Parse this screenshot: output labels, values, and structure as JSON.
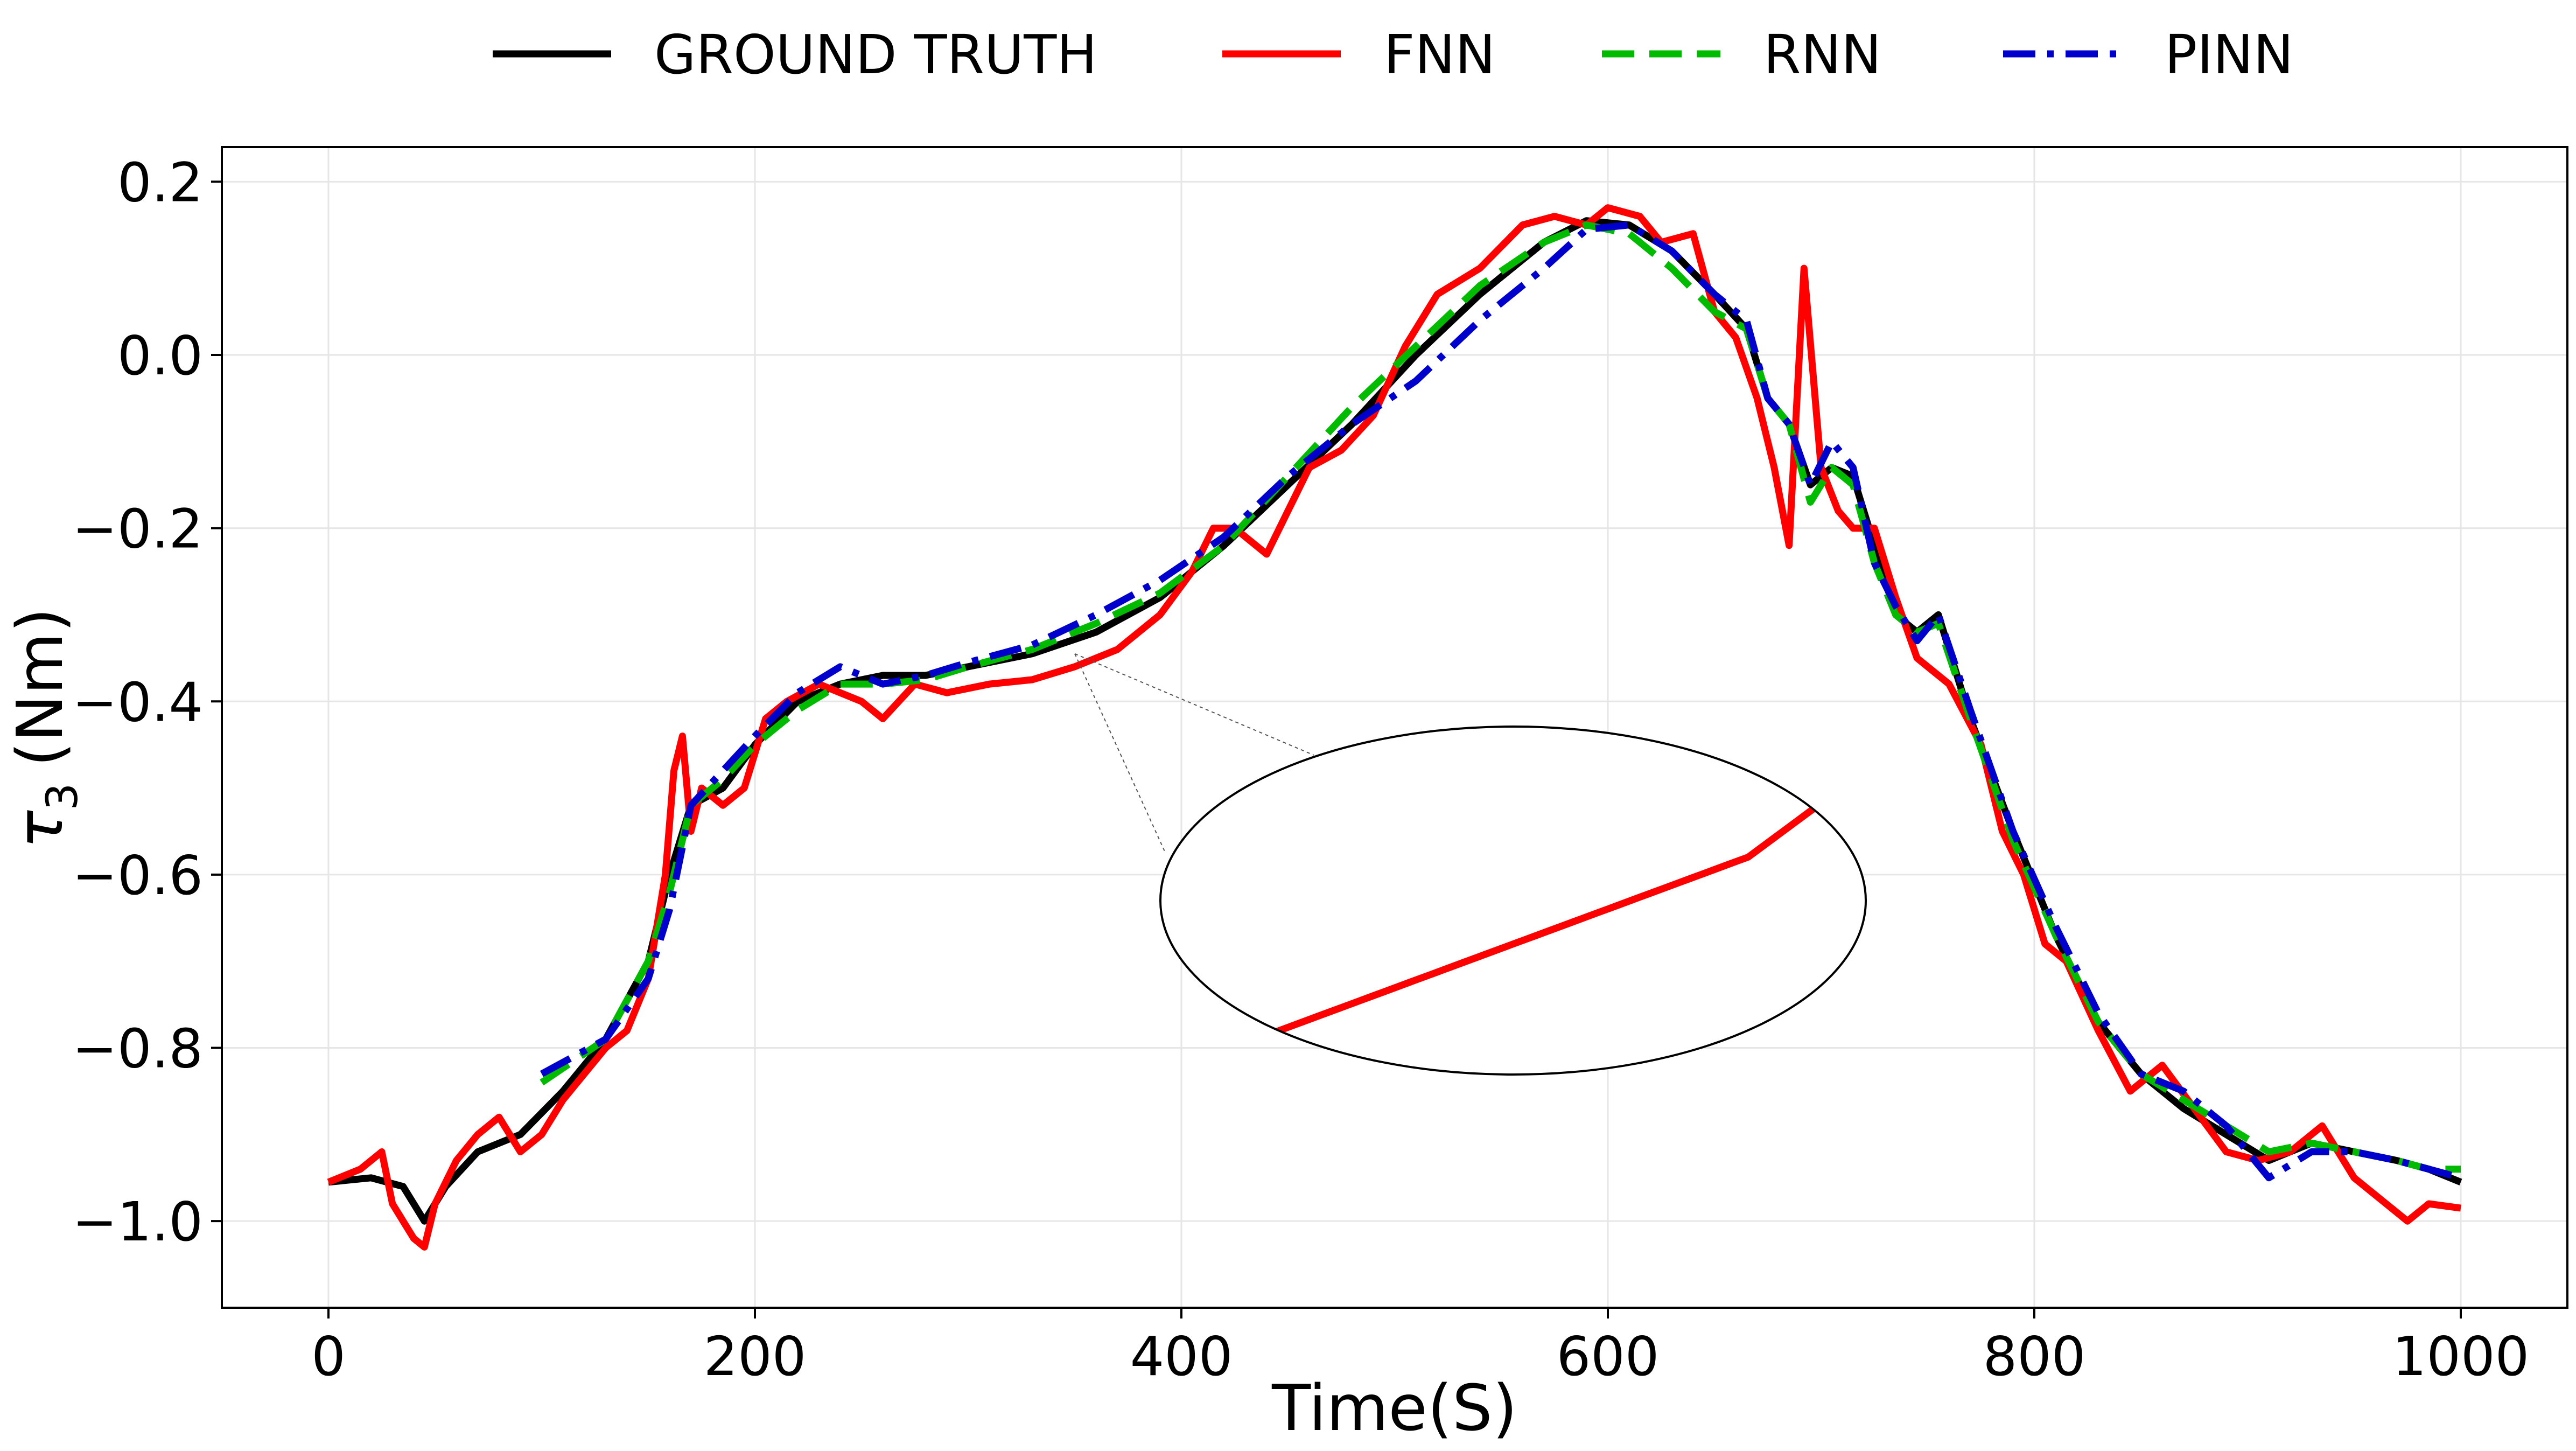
{
  "chart_data": {
    "type": "line",
    "xlabel": "Time(S)",
    "ylabel_main": "τ",
    "ylabel_sub": "3",
    "ylabel_unit": "(Nm)",
    "xlim": [
      -50,
      1050
    ],
    "ylim": [
      -1.1,
      0.24
    ],
    "xticks": [
      0,
      200,
      400,
      600,
      800,
      1000
    ],
    "xtick_labels": [
      "0",
      "200",
      "400",
      "600",
      "800",
      "1000"
    ],
    "yticks": [
      0.2,
      0.0,
      -0.2,
      -0.4,
      -0.6,
      -0.8,
      -1.0
    ],
    "ytick_labels": [
      "0.2",
      "0.0",
      "−0.2",
      "−0.4",
      "−0.6",
      "−0.8",
      "−1.0"
    ],
    "grid": true,
    "legend_position": "top-center",
    "inset": {
      "shape": "ellipse",
      "zoom_region_x": [
        345,
        375
      ],
      "zoom_region_y": [
        -0.365,
        -0.325
      ],
      "points_to_x": 350,
      "points_to_y": -0.345
    },
    "series": [
      {
        "name": "GROUND TRUTH",
        "color": "#000000",
        "dash": "solid",
        "x": [
          0,
          20,
          35,
          45,
          55,
          70,
          90,
          110,
          130,
          150,
          160,
          170,
          185,
          200,
          220,
          240,
          260,
          280,
          300,
          330,
          360,
          390,
          420,
          450,
          480,
          510,
          540,
          570,
          590,
          610,
          630,
          650,
          665,
          675,
          685,
          695,
          705,
          715,
          725,
          735,
          745,
          755,
          770,
          790,
          810,
          830,
          850,
          870,
          890,
          910,
          930,
          950,
          970,
          985,
          1000
        ],
        "y": [
          -0.955,
          -0.95,
          -0.96,
          -1.0,
          -0.96,
          -0.92,
          -0.9,
          -0.85,
          -0.79,
          -0.7,
          -0.6,
          -0.52,
          -0.5,
          -0.45,
          -0.4,
          -0.38,
          -0.37,
          -0.37,
          -0.36,
          -0.345,
          -0.32,
          -0.28,
          -0.22,
          -0.15,
          -0.08,
          0.0,
          0.07,
          0.13,
          0.155,
          0.15,
          0.12,
          0.07,
          0.03,
          -0.05,
          -0.08,
          -0.15,
          -0.13,
          -0.14,
          -0.22,
          -0.3,
          -0.32,
          -0.3,
          -0.42,
          -0.55,
          -0.67,
          -0.77,
          -0.83,
          -0.87,
          -0.9,
          -0.93,
          -0.91,
          -0.92,
          -0.93,
          -0.94,
          -0.955
        ]
      },
      {
        "name": "FNN",
        "color": "#ff0000",
        "dash": "solid",
        "x": [
          0,
          15,
          25,
          30,
          35,
          40,
          45,
          50,
          60,
          70,
          80,
          90,
          100,
          110,
          120,
          130,
          140,
          150,
          158,
          162,
          166,
          170,
          175,
          185,
          195,
          205,
          215,
          230,
          250,
          260,
          275,
          290,
          310,
          330,
          350,
          370,
          390,
          405,
          415,
          425,
          440,
          460,
          475,
          490,
          505,
          520,
          540,
          560,
          575,
          590,
          600,
          615,
          625,
          640,
          650,
          660,
          670,
          678,
          685,
          692,
          700,
          708,
          715,
          725,
          735,
          745,
          760,
          775,
          785,
          795,
          805,
          815,
          830,
          845,
          860,
          875,
          890,
          905,
          920,
          935,
          950,
          965,
          975,
          985,
          1000
        ],
        "y": [
          -0.955,
          -0.94,
          -0.92,
          -0.98,
          -1.0,
          -1.02,
          -1.03,
          -0.98,
          -0.93,
          -0.9,
          -0.88,
          -0.92,
          -0.9,
          -0.86,
          -0.83,
          -0.8,
          -0.78,
          -0.72,
          -0.6,
          -0.48,
          -0.44,
          -0.55,
          -0.5,
          -0.52,
          -0.5,
          -0.42,
          -0.4,
          -0.38,
          -0.4,
          -0.42,
          -0.38,
          -0.39,
          -0.38,
          -0.375,
          -0.36,
          -0.34,
          -0.3,
          -0.25,
          -0.2,
          -0.2,
          -0.23,
          -0.13,
          -0.11,
          -0.07,
          0.01,
          0.07,
          0.1,
          0.15,
          0.16,
          0.15,
          0.17,
          0.16,
          0.13,
          0.14,
          0.05,
          0.02,
          -0.05,
          -0.13,
          -0.22,
          0.1,
          -0.13,
          -0.18,
          -0.2,
          -0.2,
          -0.28,
          -0.35,
          -0.38,
          -0.45,
          -0.55,
          -0.6,
          -0.68,
          -0.7,
          -0.78,
          -0.85,
          -0.82,
          -0.87,
          -0.92,
          -0.93,
          -0.92,
          -0.89,
          -0.95,
          -0.98,
          -1.0,
          -0.98,
          -0.985
        ]
      },
      {
        "name": "RNN",
        "color": "#00bb00",
        "dash": "dashed",
        "x": [
          100,
          130,
          150,
          160,
          170,
          185,
          200,
          220,
          240,
          260,
          280,
          300,
          330,
          360,
          390,
          420,
          450,
          480,
          510,
          540,
          570,
          590,
          610,
          630,
          650,
          665,
          675,
          685,
          695,
          705,
          715,
          725,
          735,
          745,
          755,
          770,
          790,
          810,
          830,
          850,
          870,
          890,
          910,
          930,
          950,
          970,
          985,
          1000
        ],
        "y": [
          -0.84,
          -0.79,
          -0.7,
          -0.62,
          -0.52,
          -0.49,
          -0.45,
          -0.41,
          -0.38,
          -0.38,
          -0.375,
          -0.36,
          -0.34,
          -0.31,
          -0.275,
          -0.22,
          -0.14,
          -0.06,
          0.01,
          0.08,
          0.13,
          0.15,
          0.14,
          0.1,
          0.05,
          0.03,
          -0.05,
          -0.08,
          -0.17,
          -0.13,
          -0.15,
          -0.24,
          -0.3,
          -0.32,
          -0.31,
          -0.42,
          -0.56,
          -0.67,
          -0.77,
          -0.83,
          -0.86,
          -0.89,
          -0.92,
          -0.91,
          -0.92,
          -0.93,
          -0.94,
          -0.94
        ]
      },
      {
        "name": "PINN",
        "color": "#0000cc",
        "dash": "dashdot",
        "x": [
          100,
          130,
          150,
          160,
          170,
          185,
          200,
          220,
          240,
          260,
          280,
          300,
          330,
          360,
          390,
          420,
          450,
          480,
          510,
          540,
          570,
          590,
          610,
          630,
          650,
          665,
          675,
          685,
          695,
          705,
          715,
          725,
          735,
          745,
          755,
          770,
          790,
          810,
          830,
          850,
          870,
          890,
          910,
          930,
          950,
          970,
          985,
          1000
        ],
        "y": [
          -0.83,
          -0.79,
          -0.72,
          -0.64,
          -0.52,
          -0.48,
          -0.44,
          -0.39,
          -0.36,
          -0.38,
          -0.37,
          -0.355,
          -0.335,
          -0.3,
          -0.26,
          -0.21,
          -0.14,
          -0.08,
          -0.03,
          0.04,
          0.1,
          0.145,
          0.15,
          0.12,
          0.07,
          0.04,
          -0.05,
          -0.08,
          -0.15,
          -0.1,
          -0.13,
          -0.24,
          -0.29,
          -0.33,
          -0.3,
          -0.41,
          -0.55,
          -0.66,
          -0.76,
          -0.83,
          -0.85,
          -0.89,
          -0.95,
          -0.92,
          -0.92,
          -0.93,
          -0.94,
          -0.95
        ]
      }
    ]
  }
}
